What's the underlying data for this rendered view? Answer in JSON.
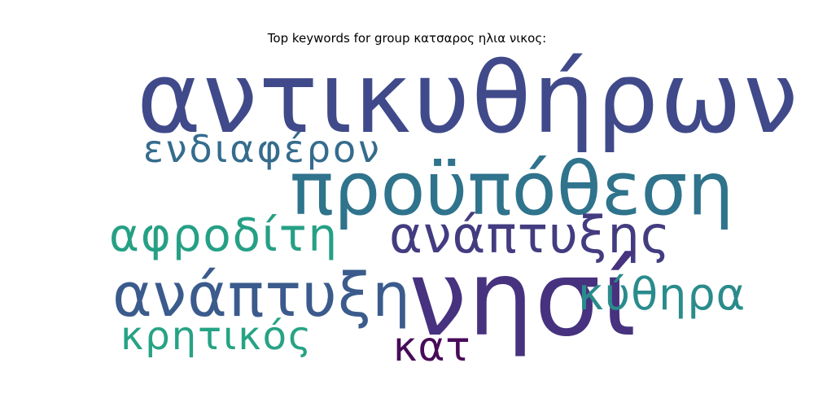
{
  "title": "Top keywords for group κατσαρος ηλια νικος:",
  "words": [
    {
      "text": "αντικυθήρων",
      "color": "#404a8a"
    },
    {
      "text": "προϋπόθεση",
      "color": "#2f738c"
    },
    {
      "text": "ενδιαφέρον",
      "color": "#356c8d"
    },
    {
      "text": "αφροδίτη",
      "color": "#26a085"
    },
    {
      "text": "ανάπτυξης",
      "color": "#433c80"
    },
    {
      "text": "ανάπτυξη",
      "color": "#3b5b8c"
    },
    {
      "text": "νησί",
      "color": "#46327e"
    },
    {
      "text": "κύθηρα",
      "color": "#2a8b8c"
    },
    {
      "text": "κρητικός",
      "color": "#26a384"
    },
    {
      "text": "κατ",
      "color": "#480b58"
    }
  ]
}
